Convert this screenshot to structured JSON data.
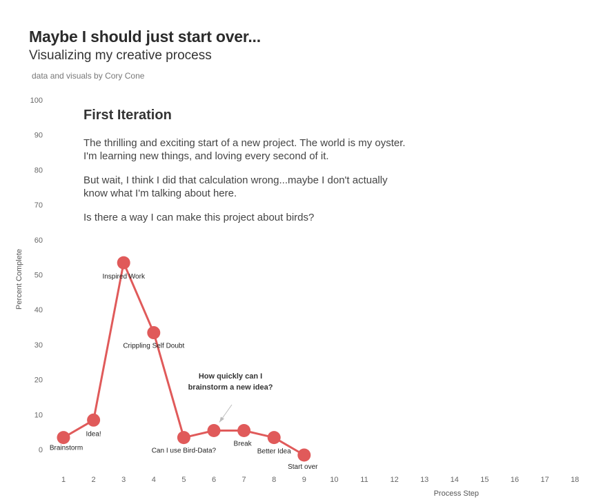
{
  "header": {
    "title": "Maybe I should just start over...",
    "subtitle": "Visualizing my creative process",
    "credit": "data and visuals by Cory Cone"
  },
  "panel": {
    "heading": "First Iteration",
    "paragraphs": [
      "The thrilling and exciting start of a new project. The world is my oyster. I'm learning new things, and loving every second of it.",
      "But wait, I think I did that calculation wrong...maybe I don't actually know what I'm talking about here.",
      "Is there a way I can make this project about birds?"
    ]
  },
  "chart_data": {
    "type": "line",
    "title": "",
    "xlabel": "Process Step",
    "ylabel": "Percent Complete",
    "xlim": [
      1,
      18
    ],
    "ylim": [
      0,
      100
    ],
    "x_ticks": [
      1,
      2,
      3,
      4,
      5,
      6,
      7,
      8,
      9,
      10,
      11,
      12,
      13,
      14,
      15,
      16,
      17,
      18
    ],
    "y_ticks": [
      0,
      10,
      20,
      30,
      40,
      50,
      60,
      70,
      80,
      90,
      100
    ],
    "grid": false,
    "line_color": "#e05a5a",
    "points": [
      {
        "x": 1,
        "y": 5,
        "label": "Brainstorm"
      },
      {
        "x": 2,
        "y": 10,
        "label": "Idea!"
      },
      {
        "x": 3,
        "y": 55,
        "label": "Inspired Work"
      },
      {
        "x": 4,
        "y": 35,
        "label": "Crippling Self Doubt"
      },
      {
        "x": 5,
        "y": 5,
        "label": "Can I use Bird-Data?"
      },
      {
        "x": 6,
        "y": 7,
        "label": ""
      },
      {
        "x": 7,
        "y": 7,
        "label": "Break"
      },
      {
        "x": 8,
        "y": 5,
        "label": "Better Idea"
      },
      {
        "x": 9,
        "y": 0,
        "label": "Start over"
      }
    ],
    "annotation": {
      "lines": [
        "How quickly can I",
        "brainstorm a new idea?"
      ],
      "target_x": 6,
      "target_y": 7
    }
  }
}
